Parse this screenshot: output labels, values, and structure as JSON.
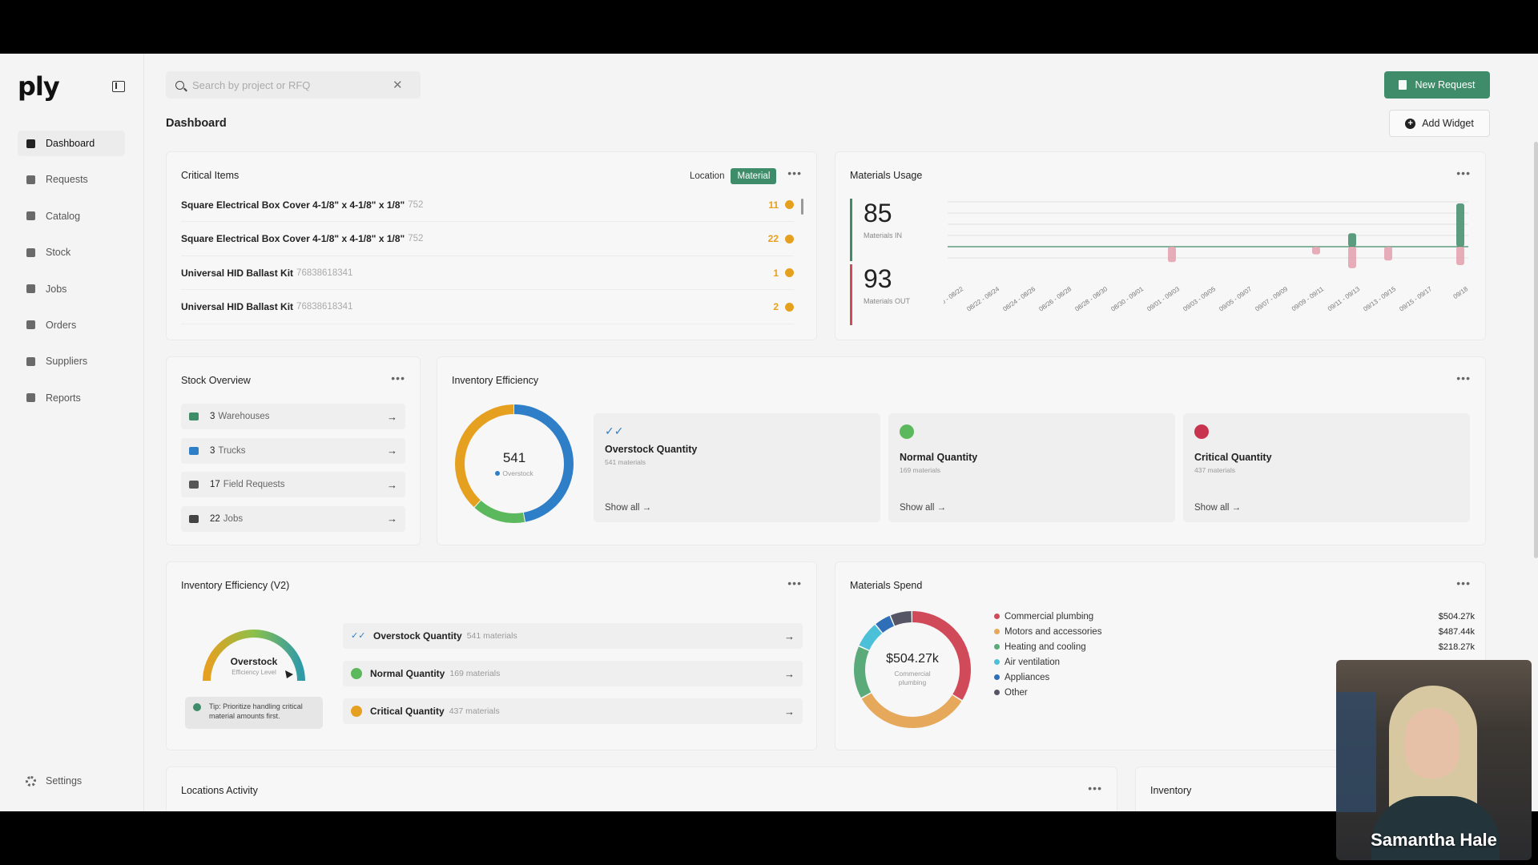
{
  "app": {
    "logo": "ply",
    "search_placeholder": "Search by project or RFQ",
    "new_request": "New Request",
    "page_title": "Dashboard",
    "add_widget": "Add Widget"
  },
  "sidebar": {
    "items": [
      {
        "label": "Dashboard",
        "icon": "home-icon",
        "active": true
      },
      {
        "label": "Requests",
        "icon": "document-icon"
      },
      {
        "label": "Catalog",
        "icon": "catalog-icon"
      },
      {
        "label": "Stock",
        "icon": "warehouse-icon"
      },
      {
        "label": "Jobs",
        "icon": "briefcase-icon"
      },
      {
        "label": "Orders",
        "icon": "cart-icon"
      },
      {
        "label": "Suppliers",
        "icon": "store-icon"
      },
      {
        "label": "Reports",
        "icon": "report-icon"
      }
    ],
    "settings": "Settings"
  },
  "critical": {
    "title": "Critical Items",
    "filters": [
      "Location",
      "Material"
    ],
    "active_filter": "Material",
    "rows": [
      {
        "name": "Square Electrical Box Cover 4-1/8\" x 4-1/8\" x 1/8\"",
        "code": "752",
        "qty": "11"
      },
      {
        "name": "Square Electrical Box Cover 4-1/8\" x 4-1/8\" x 1/8\"",
        "code": "752",
        "qty": "22"
      },
      {
        "name": "Universal HID Ballast Kit",
        "code": "76838618341",
        "qty": "1"
      },
      {
        "name": "Universal HID Ballast Kit",
        "code": "76838618341",
        "qty": "2"
      }
    ]
  },
  "usage": {
    "title": "Materials Usage",
    "in_value": "85",
    "in_label": "Materials IN",
    "out_value": "93",
    "out_label": "Materials OUT",
    "colors": {
      "in": "#3f8c6a",
      "out": "#e3a3b0"
    }
  },
  "chart_data": {
    "type": "bar",
    "categories": [
      "08/20 - 08/22",
      "08/22 - 08/24",
      "08/24 - 08/26",
      "08/26 - 08/28",
      "08/28 - 08/30",
      "08/30 - 09/01",
      "09/01 - 09/03",
      "09/03 - 09/05",
      "09/05 - 09/07",
      "09/07 - 09/09",
      "09/09 - 09/11",
      "09/11 - 09/13",
      "09/13 - 09/15",
      "09/15 - 09/17",
      "09/18"
    ],
    "series": [
      {
        "name": "Materials IN",
        "values": [
          0,
          0,
          0,
          0,
          0,
          0,
          0,
          0,
          0,
          0,
          0,
          14,
          0,
          0,
          45
        ]
      },
      {
        "name": "Materials OUT",
        "values": [
          0,
          0,
          0,
          0,
          0,
          0,
          10,
          0,
          0,
          0,
          5,
          14,
          9,
          0,
          12
        ]
      }
    ],
    "grid": true
  },
  "stock": {
    "title": "Stock Overview",
    "rows": [
      {
        "num": "3",
        "label": "Warehouses",
        "color": "#3f8c6a"
      },
      {
        "num": "3",
        "label": "Trucks",
        "color": "#2f7fc8"
      },
      {
        "num": "17",
        "label": "Field Requests",
        "color": "#555555"
      },
      {
        "num": "22",
        "label": "Jobs",
        "color": "#444444"
      }
    ]
  },
  "efficiency": {
    "title": "Inventory Efficiency",
    "center_value": "541",
    "center_label": "Overstock",
    "donut": [
      {
        "value": 541,
        "color": "#2f7fc8"
      },
      {
        "value": 169,
        "color": "#5cb85c"
      },
      {
        "value": 437,
        "color": "#e6a020"
      }
    ],
    "panels": [
      {
        "title": "Overstock Quantity",
        "sub": "541 materials",
        "show": "Show all →",
        "icon": "double-check-icon",
        "color": "#2f7fc8"
      },
      {
        "title": "Normal Quantity",
        "sub": "169 materials",
        "show": "Show all →",
        "icon": "check-circle-icon",
        "color": "#5cb85c"
      },
      {
        "title": "Critical Quantity",
        "sub": "437 materials",
        "show": "Show all →",
        "icon": "alert-icon",
        "color": "#c8344e"
      }
    ]
  },
  "efficiency2": {
    "title": "Inventory Efficiency (V2)",
    "gauge_label": "Overstock",
    "gauge_sub": "Efficiency Level",
    "tip": "Tip: Prioritize handling critical material amounts first.",
    "rows": [
      {
        "title": "Overstock Quantity",
        "sub": "541 materials",
        "color": "#2f7fc8"
      },
      {
        "title": "Normal Quantity",
        "sub": "169 materials",
        "color": "#5cb85c"
      },
      {
        "title": "Critical Quantity",
        "sub": "437 materials",
        "color": "#e6a020"
      }
    ]
  },
  "spend": {
    "title": "Materials Spend",
    "center_value": "$504.27k",
    "center_label": "Commercial plumbing",
    "legend": [
      {
        "label": "Commercial plumbing",
        "value": "$504.27k",
        "color": "#d14a5a",
        "share": 504.27
      },
      {
        "label": "Motors and accessories",
        "value": "$487.44k",
        "color": "#e6a85a",
        "share": 487.44
      },
      {
        "label": "Heating and cooling",
        "value": "$218.27k",
        "color": "#5aaa7a",
        "share": 218.27
      },
      {
        "label": "Air ventilation",
        "value": "",
        "color": "#4cc0d8",
        "share": 110
      },
      {
        "label": "Appliances",
        "value": "",
        "color": "#2f6fb8",
        "share": 70
      },
      {
        "label": "Other",
        "value": "",
        "color": "#555566",
        "share": 90
      }
    ]
  },
  "locations": {
    "title": "Locations Activity"
  },
  "inventory": {
    "title": "Inventory"
  },
  "webcam": {
    "name": "Samantha Hale"
  }
}
